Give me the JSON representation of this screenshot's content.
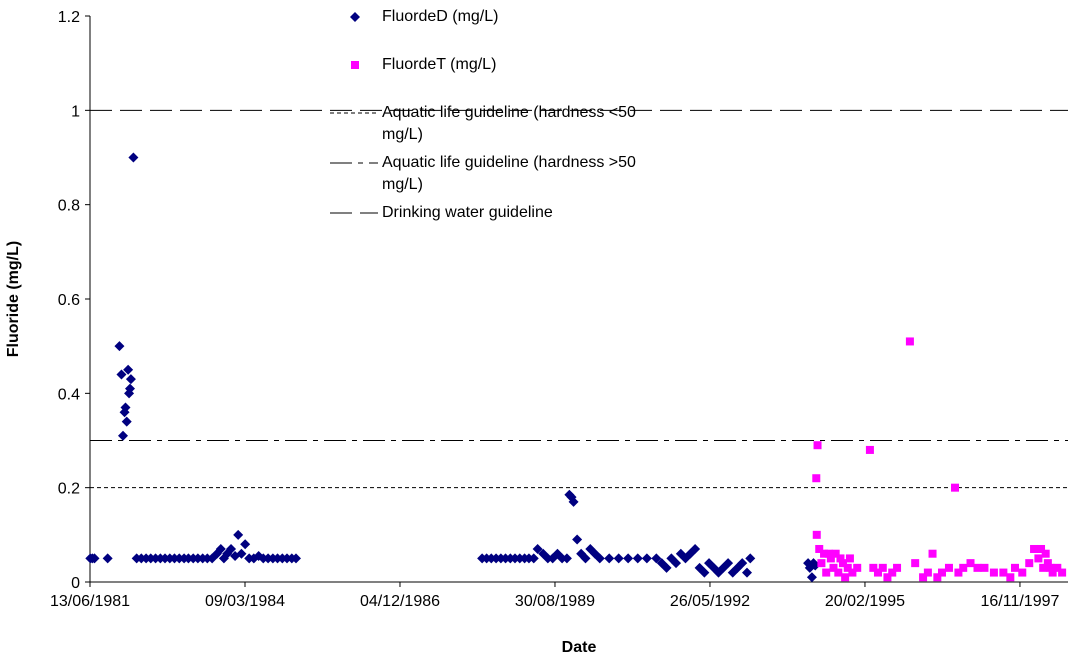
{
  "chart_data": {
    "type": "scatter",
    "x_label": "Date",
    "y_label": "Fluoride (mg/L)",
    "xlim": [
      "1981-06-13",
      "1998-09-22"
    ],
    "xticks": [
      {
        "value": "1981-06-13",
        "label": "13/06/1981"
      },
      {
        "value": "1984-03-09",
        "label": "09/03/1984"
      },
      {
        "value": "1986-12-04",
        "label": "04/12/1986"
      },
      {
        "value": "1989-08-30",
        "label": "30/08/1989"
      },
      {
        "value": "1992-05-26",
        "label": "26/05/1992"
      },
      {
        "value": "1995-02-20",
        "label": "20/02/1995"
      },
      {
        "value": "1997-11-16",
        "label": "16/11/1997"
      }
    ],
    "ylim": [
      0,
      1.2
    ],
    "yticks": [
      0,
      0.2,
      0.4,
      0.6,
      0.8,
      1,
      1.2
    ],
    "series": [
      {
        "name": "FluordeD (mg/L)",
        "color": "#000080",
        "marker": "diamond",
        "x": [
          "1981-06-15",
          "1981-06-28",
          "1981-07-12",
          "1981-10-05",
          "1981-12-20",
          "1982-01-02",
          "1982-01-12",
          "1982-01-22",
          "1982-01-28",
          "1982-02-05",
          "1982-02-14",
          "1982-02-20",
          "1982-02-26",
          "1982-03-04",
          "1982-03-20",
          "1982-04-10",
          "1982-05-10",
          "1982-06-10",
          "1982-07-10",
          "1982-08-10",
          "1982-09-10",
          "1982-10-10",
          "1982-11-10",
          "1982-12-10",
          "1983-01-10",
          "1983-02-10",
          "1983-03-10",
          "1983-04-10",
          "1983-05-10",
          "1983-06-10",
          "1983-07-10",
          "1983-08-10",
          "1983-09-10",
          "1983-10-05",
          "1983-10-25",
          "1983-11-15",
          "1983-12-10",
          "1984-01-05",
          "1984-01-25",
          "1984-02-15",
          "1984-03-10",
          "1984-04-05",
          "1984-05-05",
          "1984-06-05",
          "1984-07-05",
          "1984-08-05",
          "1984-09-05",
          "1984-10-05",
          "1984-11-05",
          "1984-12-05",
          "1985-01-05",
          "1985-02-01",
          "1988-05-17",
          "1988-06-15",
          "1988-07-15",
          "1988-08-15",
          "1988-09-15",
          "1988-10-15",
          "1988-11-15",
          "1988-12-15",
          "1989-01-15",
          "1989-02-15",
          "1989-03-15",
          "1989-04-15",
          "1989-05-10",
          "1989-06-15",
          "1989-07-15",
          "1989-08-15",
          "1989-09-15",
          "1989-10-15",
          "1989-11-15",
          "1989-12-01",
          "1989-12-15",
          "1989-12-28",
          "1990-01-20",
          "1990-02-15",
          "1990-03-15",
          "1990-04-15",
          "1990-05-15",
          "1990-06-15",
          "1990-08-15",
          "1990-10-15",
          "1990-12-15",
          "1991-02-15",
          "1991-04-15",
          "1991-06-15",
          "1991-07-20",
          "1991-08-20",
          "1991-09-20",
          "1991-10-20",
          "1991-11-20",
          "1991-12-20",
          "1992-01-20",
          "1992-02-20",
          "1992-03-20",
          "1992-04-20",
          "1992-05-20",
          "1992-06-20",
          "1992-07-20",
          "1992-08-20",
          "1992-09-20",
          "1992-10-20",
          "1992-11-20",
          "1992-12-20",
          "1993-01-20",
          "1993-02-10",
          "1994-02-18",
          "1994-03-01",
          "1994-03-15",
          "1994-03-25",
          "1994-04-05"
        ],
        "values": [
          0.05,
          0.05,
          0.05,
          0.05,
          0.5,
          0.44,
          0.31,
          0.36,
          0.37,
          0.34,
          0.45,
          0.4,
          0.41,
          0.43,
          0.9,
          0.05,
          0.05,
          0.05,
          0.05,
          0.05,
          0.05,
          0.05,
          0.05,
          0.05,
          0.05,
          0.05,
          0.05,
          0.05,
          0.05,
          0.05,
          0.05,
          0.05,
          0.06,
          0.07,
          0.05,
          0.06,
          0.07,
          0.055,
          0.1,
          0.06,
          0.08,
          0.05,
          0.05,
          0.055,
          0.05,
          0.05,
          0.05,
          0.05,
          0.05,
          0.05,
          0.05,
          0.05,
          0.05,
          0.05,
          0.05,
          0.05,
          0.05,
          0.05,
          0.05,
          0.05,
          0.05,
          0.05,
          0.05,
          0.05,
          0.07,
          0.06,
          0.05,
          0.05,
          0.06,
          0.05,
          0.05,
          0.185,
          0.18,
          0.17,
          0.09,
          0.06,
          0.05,
          0.07,
          0.06,
          0.05,
          0.05,
          0.05,
          0.05,
          0.05,
          0.05,
          0.05,
          0.04,
          0.03,
          0.05,
          0.04,
          0.06,
          0.05,
          0.06,
          0.07,
          0.03,
          0.02,
          0.04,
          0.03,
          0.02,
          0.03,
          0.04,
          0.02,
          0.03,
          0.04,
          0.02,
          0.05,
          0.04,
          0.03,
          0.01,
          0.04,
          0.035
        ]
      },
      {
        "name": "FluordeT (mg/L)",
        "color": "#ff00ff",
        "marker": "square",
        "x": [
          "1994-04-12",
          "1994-04-20",
          "1994-04-15",
          "1994-05-01",
          "1994-05-15",
          "1994-06-01",
          "1994-06-15",
          "1994-07-01",
          "1994-07-15",
          "1994-08-01",
          "1994-08-15",
          "1994-09-01",
          "1994-09-15",
          "1994-10-01",
          "1994-10-15",
          "1994-11-01",
          "1994-11-15",
          "1994-12-01",
          "1995-01-01",
          "1995-03-24",
          "1995-04-15",
          "1995-05-15",
          "1995-06-15",
          "1995-07-15",
          "1995-08-15",
          "1995-09-15",
          "1995-12-07",
          "1996-01-10",
          "1996-03-01",
          "1996-04-01",
          "1996-05-01",
          "1996-06-01",
          "1996-07-01",
          "1996-09-23",
          "1996-08-15",
          "1996-10-15",
          "1996-11-15",
          "1997-01-01",
          "1997-02-15",
          "1997-04-01",
          "1997-06-01",
          "1997-08-01",
          "1997-09-15",
          "1997-10-15",
          "1997-12-01",
          "1998-01-15",
          "1998-02-15",
          "1998-03-15",
          "1998-04-01",
          "1998-04-15",
          "1998-05-01",
          "1998-05-15",
          "1998-06-01",
          "1998-06-15",
          "1998-07-15",
          "1998-08-15"
        ],
        "values": [
          0.22,
          0.29,
          0.1,
          0.07,
          0.04,
          0.06,
          0.02,
          0.06,
          0.05,
          0.03,
          0.06,
          0.02,
          0.05,
          0.04,
          0.01,
          0.03,
          0.05,
          0.02,
          0.03,
          0.28,
          0.03,
          0.02,
          0.03,
          0.01,
          0.02,
          0.03,
          0.51,
          0.04,
          0.01,
          0.02,
          0.06,
          0.01,
          0.02,
          0.2,
          0.03,
          0.02,
          0.03,
          0.04,
          0.03,
          0.03,
          0.02,
          0.02,
          0.01,
          0.03,
          0.02,
          0.04,
          0.07,
          0.05,
          0.07,
          0.03,
          0.06,
          0.04,
          0.03,
          0.02,
          0.03,
          0.02
        ]
      }
    ],
    "reference_lines": [
      {
        "name": "Aquatic life guideline (hardness <50 mg/L)",
        "value": 0.2,
        "color": "#000000",
        "dash": "4,3"
      },
      {
        "name": "Aquatic life guideline (hardness >50 mg/L)",
        "value": 0.3,
        "color": "#000000",
        "dash": "22,6,5,6"
      },
      {
        "name": "Drinking water guideline",
        "value": 1,
        "color": "#000000",
        "dash": "22,8"
      }
    ]
  }
}
